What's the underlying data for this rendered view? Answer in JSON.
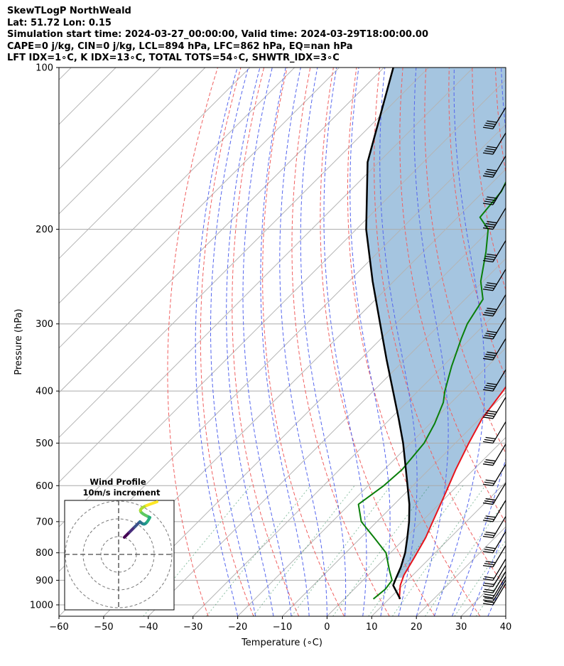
{
  "header": {
    "title": "SkewTLogP NorthWeald",
    "location": "Lat: 51.72   Lon: 0.15",
    "times": "Simulation start time: 2024-03-27_00:00:00, Valid time: 2024-03-29T18:00:00.00",
    "params": "CAPE=0 j/kg, CIN=0 j/kg, LCL=894 hPa, LFC=862 hPa, EQ=nan hPa",
    "indices": "LFT IDX=1∘C, K IDX=13∘C, TOTAL TOTS=54∘C, SHWTR_IDX=3∘C"
  },
  "chart_data": [
    {
      "type": "line",
      "title": "",
      "xlabel": "Temperature (∘C)",
      "ylabel": "Pressure (hPa)",
      "xlim": [
        -60,
        40
      ],
      "ylim": [
        1050,
        100
      ],
      "y_scale": "log",
      "skew": "skew-T",
      "x_ticks": [
        "−60",
        "−50",
        "−40",
        "−30",
        "−20",
        "−10",
        "0",
        "10",
        "20",
        "30",
        "40"
      ],
      "y_ticks": [
        "1000",
        "900",
        "800",
        "700",
        "600",
        "500",
        "400",
        "300",
        "200",
        "100"
      ],
      "series": [
        {
          "role": "temperature",
          "color": "#e8141c",
          "points": [
            [
              12.3,
              975
            ],
            [
              9.5,
              920
            ],
            [
              8.0,
              880
            ],
            [
              6.5,
              820
            ],
            [
              4.5,
              750
            ],
            [
              2.5,
              700
            ],
            [
              -1.0,
              620
            ],
            [
              -4.0,
              560
            ],
            [
              -7.0,
              500
            ],
            [
              -9.5,
              450
            ],
            [
              -11.0,
              400
            ],
            [
              -12.7,
              360
            ],
            [
              -14.8,
              320
            ],
            [
              -16.5,
              300
            ],
            [
              -20.0,
              270
            ],
            [
              -23.5,
              250
            ],
            [
              -29.0,
              230
            ],
            [
              -33.0,
              210
            ],
            [
              -37.0,
              190
            ],
            [
              -43.5,
              165
            ],
            [
              -48.0,
              150
            ],
            [
              -50.0,
              140
            ],
            [
              -51.0,
              130
            ],
            [
              -52.0,
              120
            ],
            [
              -54.0,
              110
            ],
            [
              -57.0,
              100
            ]
          ]
        },
        {
          "role": "dewpoint",
          "color": "#0a7f0a",
          "points": [
            [
              6.5,
              975
            ],
            [
              7.0,
              935
            ],
            [
              6.5,
              900
            ],
            [
              3.5,
              860
            ],
            [
              -1.0,
              800
            ],
            [
              -7.0,
              750
            ],
            [
              -13.5,
              700
            ],
            [
              -18.0,
              650
            ],
            [
              -16.5,
              600
            ],
            [
              -16.0,
              560
            ],
            [
              -17.0,
              500
            ],
            [
              -19.0,
              460
            ],
            [
              -21.8,
              420
            ],
            [
              -24.0,
              400
            ],
            [
              -28.0,
              360
            ],
            [
              -32.0,
              320
            ],
            [
              -34.0,
              300
            ],
            [
              -36.0,
              270
            ],
            [
              -40.5,
              250
            ],
            [
              -46.0,
              220
            ],
            [
              -50.5,
              200
            ],
            [
              -55.0,
              190
            ],
            [
              -56.0,
              170
            ],
            [
              -58.5,
              155
            ],
            [
              -65.0,
              120
            ],
            [
              -67.0,
              110
            ],
            [
              -68.8,
              100
            ]
          ]
        },
        {
          "role": "parcel",
          "color": "#000000",
          "points": [
            [
              12.5,
              975
            ],
            [
              7.9,
              920
            ],
            [
              7.0,
              894
            ],
            [
              5.5,
              850
            ],
            [
              3.3,
              800
            ],
            [
              0.4,
              750
            ],
            [
              -2.8,
              700
            ],
            [
              -6.6,
              650
            ],
            [
              -11.2,
              600
            ],
            [
              -16.2,
              550
            ],
            [
              -21.7,
              500
            ],
            [
              -28.2,
              450
            ],
            [
              -35.6,
              400
            ],
            [
              -44.0,
              350
            ],
            [
              -53.5,
              300
            ],
            [
              -64.7,
              250
            ],
            [
              -77.8,
              200
            ],
            [
              -92.5,
              150
            ],
            [
              -107.9,
              100
            ]
          ]
        }
      ],
      "shading": "CAPE/CIN area between temperature and parcel (light blue)",
      "wind_barbs": "right margin, 22 levels from ~1000 to 130 hPa",
      "inset": {
        "title": "Wind Profile",
        "subtitle": "10m/s increment",
        "type": "hodograph",
        "colormap": "viridis"
      }
    }
  ]
}
